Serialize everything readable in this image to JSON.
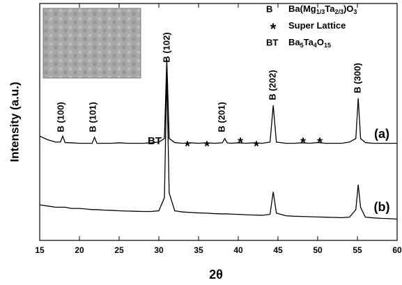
{
  "chart_data": {
    "type": "line",
    "xlabel": "2θ",
    "ylabel": "Intensity (a.u.)",
    "xlim": [
      15,
      60
    ],
    "xticks": [
      15,
      20,
      25,
      30,
      35,
      40,
      45,
      50,
      55,
      60
    ],
    "ylim": [
      0,
      100
    ],
    "x": [
      15,
      16,
      17,
      17.6,
      17.9,
      18.2,
      19,
      20,
      21,
      21.6,
      21.9,
      22.2,
      23,
      24,
      25,
      26,
      27,
      28,
      29,
      30,
      30.7,
      31,
      31.3,
      32,
      33,
      34,
      35,
      36,
      37,
      38,
      38.3,
      38.6,
      39,
      40,
      41,
      42,
      43,
      44,
      44.4,
      44.8,
      46,
      47,
      48,
      49,
      50,
      51,
      52,
      53,
      54,
      54.8,
      55.1,
      55.4,
      56,
      57,
      58,
      59,
      60
    ],
    "series": [
      {
        "name": "(a)",
        "color": "#000000",
        "values": [
          44,
          42.5,
          41.5,
          41.5,
          44,
          41.3,
          41.2,
          41,
          41,
          41,
          43.5,
          41,
          41,
          41,
          41.2,
          41,
          41,
          41,
          41.2,
          41.5,
          43,
          76.5,
          43,
          41.3,
          41,
          41.2,
          41,
          41.2,
          41,
          41.2,
          43,
          41.2,
          41,
          41.2,
          41,
          41.2,
          41,
          41.5,
          57,
          41.5,
          41,
          41,
          41.2,
          41,
          41.3,
          41,
          41,
          41,
          41.5,
          43,
          60,
          43,
          41.3,
          41,
          41,
          41,
          41
        ]
      },
      {
        "name": "(b)",
        "color": "#000000",
        "values": [
          15,
          14.5,
          14,
          14,
          14,
          14,
          13.5,
          13.5,
          13.2,
          13,
          13,
          13,
          12.8,
          12.7,
          12.5,
          12.4,
          12.3,
          12.2,
          12.2,
          12.5,
          18,
          70,
          20,
          12.5,
          12,
          11.8,
          11.6,
          11.5,
          11.3,
          11.2,
          11.2,
          11.2,
          11.1,
          11,
          10.8,
          10.7,
          10.6,
          11,
          20.5,
          11.5,
          10.4,
          10.2,
          10.1,
          10,
          9.9,
          9.8,
          9.7,
          9.6,
          9.8,
          13,
          23.5,
          14,
          9.8,
          9.5,
          9.3,
          9.2,
          9
        ]
      }
    ],
    "annotations": [
      "B (100)",
      "B (101)",
      "B (102)",
      "B (201)",
      "B (202)",
      "B (300)",
      "BT",
      "*",
      "*",
      "*",
      "*",
      "*",
      "*"
    ],
    "legend": [
      {
        "symbol": "B",
        "label": [
          "Ba(Mg",
          "1/3",
          "Ta",
          "2/3",
          ")O",
          "3"
        ]
      },
      {
        "symbol": "*",
        "label": [
          "Super Lattice"
        ]
      },
      {
        "symbol": "BT",
        "label": [
          "Ba",
          "5",
          "Ta",
          "4",
          "O",
          "15"
        ]
      }
    ]
  }
}
